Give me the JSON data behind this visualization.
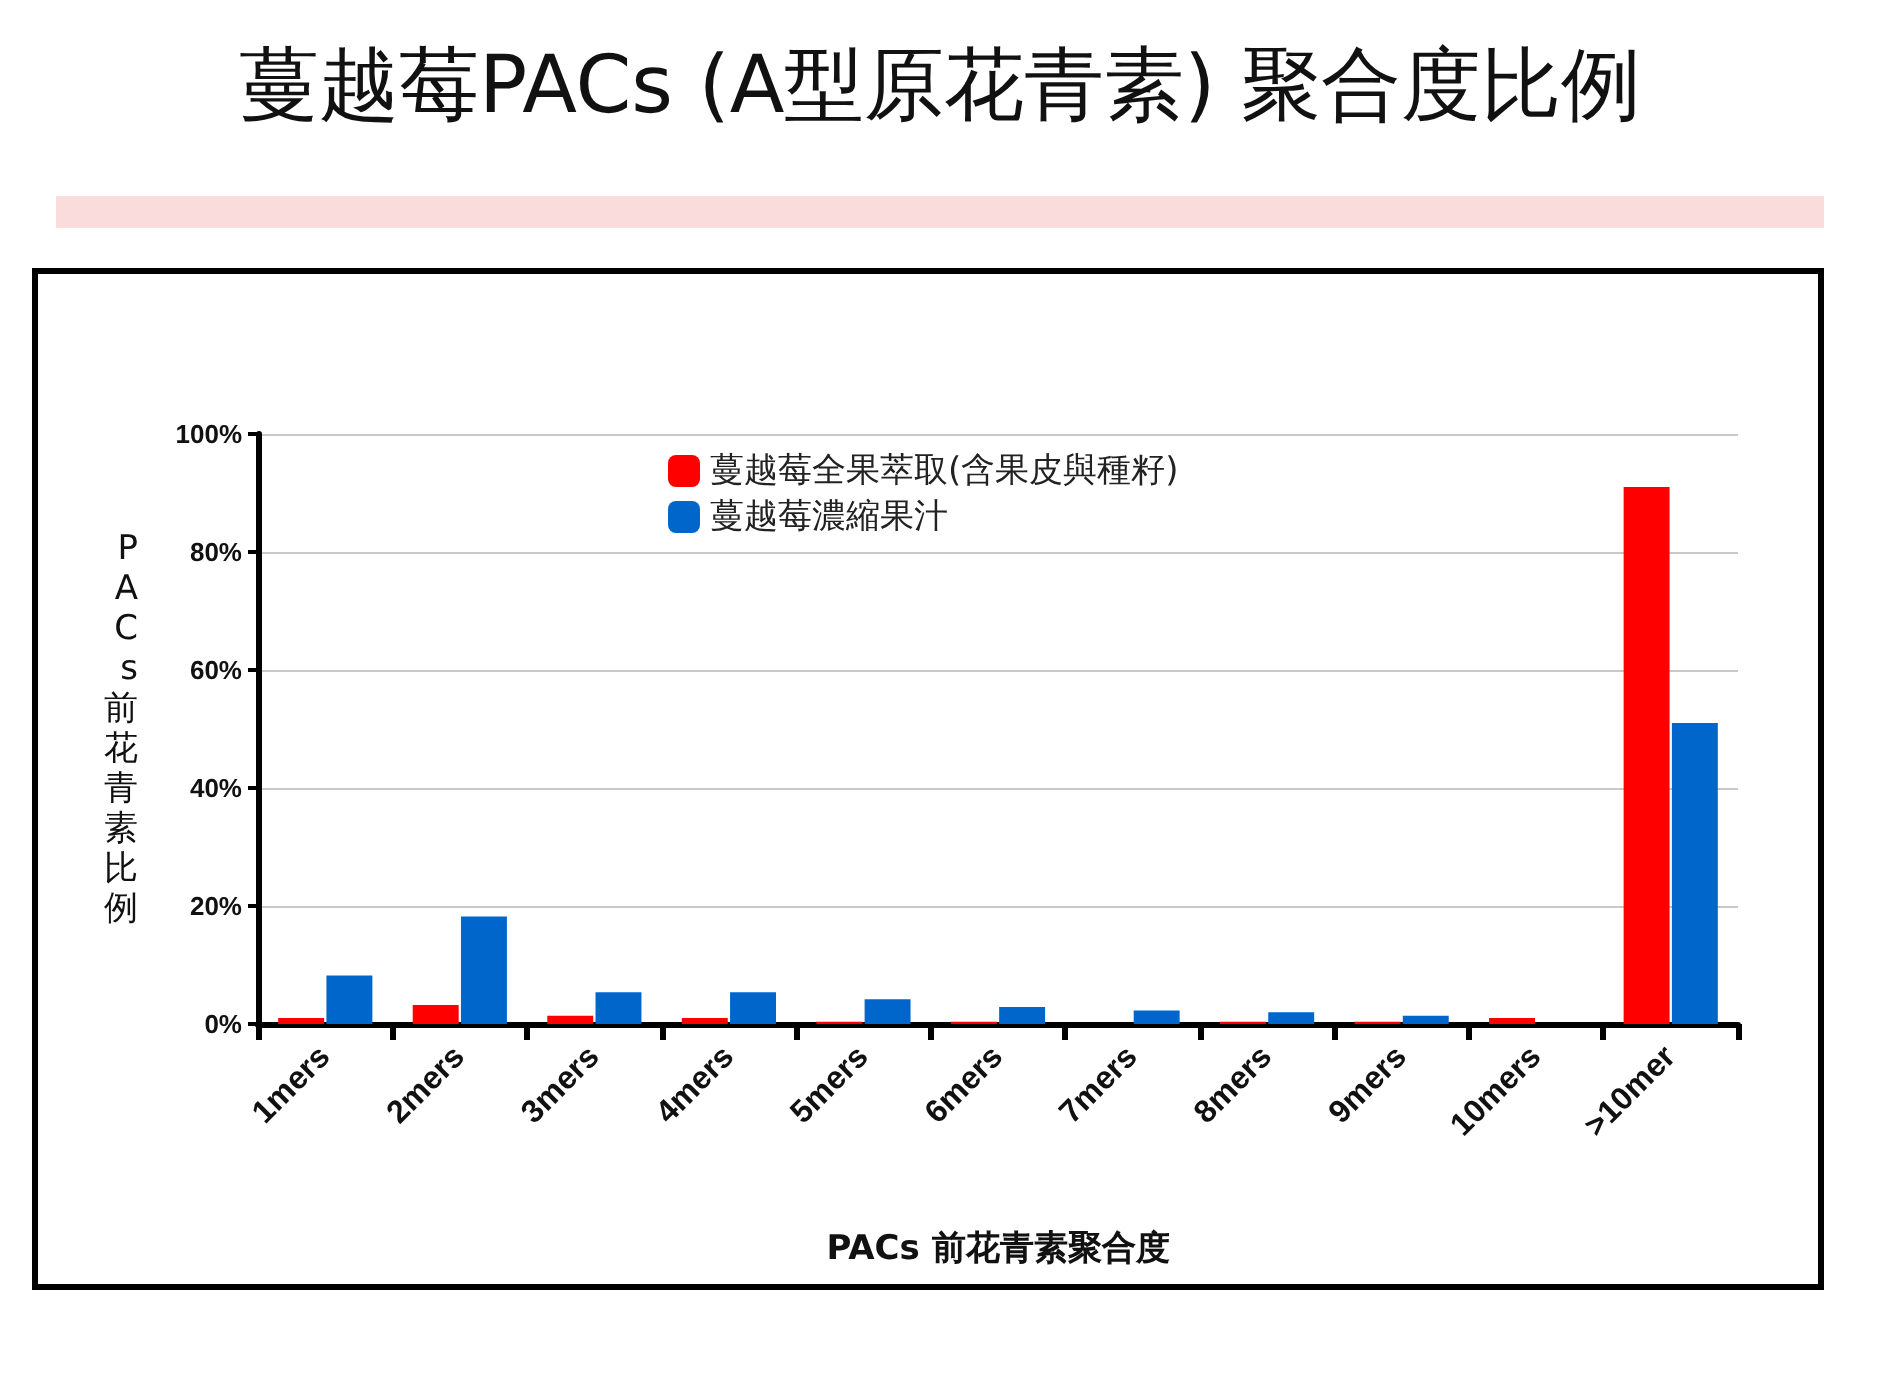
{
  "chart_data": {
    "type": "bar",
    "title": "蔓越莓PACs (A型原花青素) 聚合度比例",
    "xlabel": "PACs 前花青素聚合度",
    "ylabel": "PACs前花青素比例",
    "categories": [
      "1mers",
      "2mers",
      "3mers",
      "4mers",
      "5mers",
      "6mers",
      "7mers",
      "8mers",
      "9mers",
      "10mers",
      ">10mer"
    ],
    "series": [
      {
        "name": "蔓越莓全果萃取(含果皮與種籽)",
        "color": "#ff0000",
        "values": [
          1.0,
          3.2,
          1.4,
          1.0,
          0.4,
          0.4,
          0,
          0.4,
          0.4,
          1.0,
          91
        ]
      },
      {
        "name": "蔓越莓濃縮果汁",
        "color": "#0066cc",
        "values": [
          8.2,
          18.2,
          5.4,
          5.4,
          4.2,
          2.9,
          2.3,
          2.0,
          1.4,
          0,
          51
        ]
      }
    ],
    "ylim": [
      0,
      100
    ],
    "yticks": [
      {
        "value": 0,
        "label": "0%"
      },
      {
        "value": 20,
        "label": "20%"
      },
      {
        "value": 40,
        "label": "40%"
      },
      {
        "value": 60,
        "label": "60%"
      },
      {
        "value": 80,
        "label": "80%"
      },
      {
        "value": 100,
        "label": "100%"
      }
    ],
    "grid": "y",
    "legend": "top"
  }
}
